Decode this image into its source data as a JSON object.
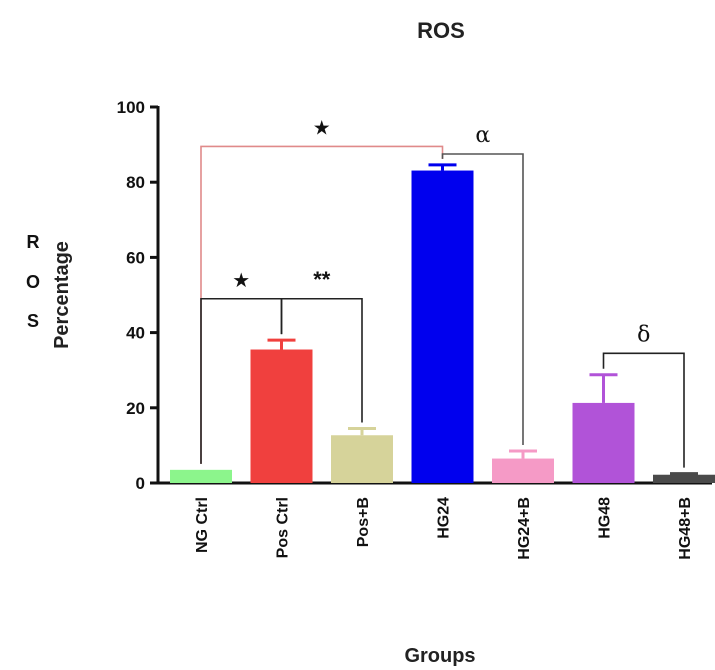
{
  "chart_data": {
    "type": "bar",
    "title": "ROS",
    "ylabel": "Percentage",
    "xlabel": "Groups",
    "side_letters": [
      "R",
      "O",
      "S"
    ],
    "ylim": [
      0,
      100
    ],
    "yticks": [
      0,
      20,
      40,
      60,
      80,
      100
    ],
    "categories": [
      "NG Ctrl",
      "Pos Ctrl",
      "Pos+B",
      "HG24",
      "HG24+B",
      "HG48",
      "HG48+B"
    ],
    "values": [
      3.5,
      35.5,
      12.7,
      83.1,
      6.5,
      21.3,
      2.2
    ],
    "errors": [
      0,
      2.5,
      1.8,
      1.5,
      2.0,
      7.5,
      0.3
    ],
    "colors": [
      "#8cf58c",
      "#f0403e",
      "#d6d39a",
      "#0000ee",
      "#f59ac6",
      "#b153d8",
      "#4a4a4a"
    ],
    "grid": false,
    "legend": "none",
    "annotations": [
      {
        "label": "★",
        "from": "NG Ctrl",
        "to": "HG24",
        "y": 89.5,
        "color": "#e08a8a"
      },
      {
        "label": "α",
        "from": "HG24",
        "to": "HG24+B",
        "y": 87.5,
        "color": "#555555"
      },
      {
        "label": "★",
        "from": "NG Ctrl",
        "to": "Pos Ctrl",
        "y": 49,
        "color": "#222222"
      },
      {
        "label": "**",
        "from": "Pos Ctrl",
        "to": "Pos+B",
        "y": 49,
        "color": "#222222"
      },
      {
        "label": "δ",
        "from": "HG48",
        "to": "HG48+B",
        "y": 34.5,
        "color": "#222222"
      }
    ]
  }
}
